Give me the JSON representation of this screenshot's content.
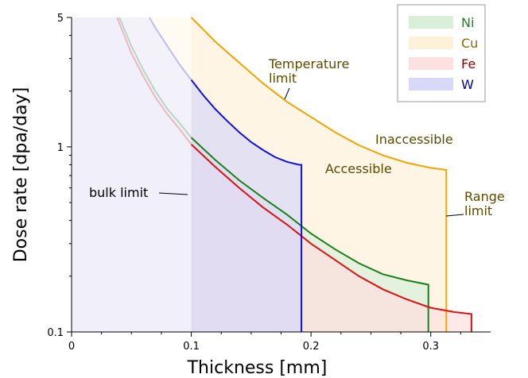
{
  "chart_data": {
    "type": "area",
    "xlabel": "Thickness [mm]",
    "ylabel": "Dose rate [dpa/day]",
    "xlim": [
      0,
      0.35
    ],
    "ylim": [
      0.1,
      5
    ],
    "yscale": "log",
    "x_ticks": [
      "0",
      "0.1",
      "0.2",
      "0.3"
    ],
    "x_tick_values": [
      0,
      0.1,
      0.2,
      0.3
    ],
    "y_ticks": [
      "0.1",
      "1",
      "5"
    ],
    "y_tick_values": [
      0.1,
      1,
      5
    ],
    "legend_position": "top-right",
    "series": [
      {
        "name": "Ni",
        "color": "#1a7f1a",
        "fill": "#d8f0d8",
        "cutoff": 0.298,
        "x": [
          0.04,
          0.05,
          0.06,
          0.07,
          0.08,
          0.09,
          0.1,
          0.12,
          0.14,
          0.16,
          0.18,
          0.2,
          0.22,
          0.24,
          0.26,
          0.28,
          0.298
        ],
        "y": [
          5,
          3.5,
          2.6,
          2.0,
          1.6,
          1.35,
          1.12,
          0.85,
          0.66,
          0.53,
          0.43,
          0.34,
          0.28,
          0.235,
          0.205,
          0.19,
          0.18
        ]
      },
      {
        "name": "Cu",
        "color": "#f5a300",
        "fill": "#fff1d8",
        "cutoff": 0.313,
        "x": [
          0.1,
          0.12,
          0.14,
          0.16,
          0.18,
          0.2,
          0.22,
          0.24,
          0.26,
          0.28,
          0.3,
          0.313
        ],
        "y": [
          5,
          3.7,
          2.85,
          2.2,
          1.75,
          1.45,
          1.2,
          1.02,
          0.9,
          0.82,
          0.77,
          0.75
        ]
      },
      {
        "name": "Fe",
        "color": "#e01010",
        "fill": "#fde0e0",
        "cutoff": 0.334,
        "x": [
          0.038,
          0.05,
          0.06,
          0.07,
          0.08,
          0.09,
          0.1,
          0.12,
          0.14,
          0.16,
          0.18,
          0.2,
          0.22,
          0.24,
          0.26,
          0.28,
          0.3,
          0.32,
          0.334
        ],
        "y": [
          5,
          3.2,
          2.4,
          1.85,
          1.5,
          1.25,
          1.03,
          0.78,
          0.6,
          0.47,
          0.38,
          0.3,
          0.245,
          0.2,
          0.17,
          0.15,
          0.135,
          0.128,
          0.125
        ]
      },
      {
        "name": "W",
        "color": "#1010e0",
        "fill": "#d8d8f8",
        "cutoff": 0.192,
        "x": [
          0.065,
          0.07,
          0.08,
          0.09,
          0.1,
          0.11,
          0.12,
          0.13,
          0.14,
          0.15,
          0.16,
          0.17,
          0.18,
          0.19,
          0.192
        ],
        "y": [
          5,
          4.4,
          3.5,
          2.8,
          2.3,
          1.9,
          1.6,
          1.38,
          1.2,
          1.06,
          0.96,
          0.88,
          0.83,
          0.8,
          0.8
        ]
      }
    ],
    "annotations": {
      "temperature_limit": "Temperature\nlimit",
      "inaccessible": "Inaccessible",
      "accessible": "Accessible",
      "range_limit": "Range\nlimit",
      "bulk_limit": "bulk limit"
    },
    "bulk_limit_x": 0.1
  }
}
